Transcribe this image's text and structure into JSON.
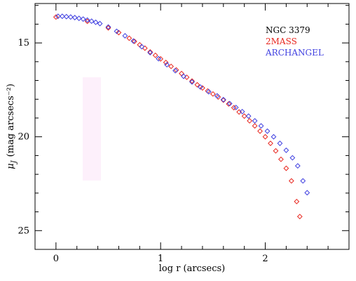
{
  "chart_data": {
    "type": "scatter",
    "title": "",
    "xlabel": "log r (arcsecs)",
    "ylabel": "μ_J (mag arcsecs⁻²)",
    "ylabel_main": "μ",
    "ylabel_sub": "J",
    "ylabel_rest": "(mag arcsecs⁻²)",
    "xlim": [
      -0.2,
      2.8
    ],
    "ylim": [
      26,
      12.9
    ],
    "y_inverted": true,
    "xticks": [
      0,
      1,
      2
    ],
    "yticks": [
      15,
      20,
      25
    ],
    "grid": false,
    "legend_position": "top-right",
    "legend": [
      {
        "text": "NGC 3379",
        "color": "#000000"
      },
      {
        "text": "2MASS",
        "color": "#e8261e"
      },
      {
        "text": "ARCHANGEL",
        "color": "#3f3fe0"
      }
    ],
    "series": [
      {
        "name": "2MASS",
        "color": "#e8261e",
        "marker": "diamond",
        "x": [
          0.0,
          0.3,
          0.5,
          0.6,
          0.7,
          0.75,
          0.8,
          0.85,
          0.9,
          0.95,
          1.0,
          1.05,
          1.1,
          1.15,
          1.2,
          1.25,
          1.3,
          1.35,
          1.4,
          1.45,
          1.5,
          1.55,
          1.6,
          1.65,
          1.7,
          1.75,
          1.8,
          1.85,
          1.9,
          1.95,
          2.0,
          2.05,
          2.1,
          2.15,
          2.2,
          2.25,
          2.3,
          2.33
        ],
        "y": [
          13.62,
          13.85,
          14.2,
          14.45,
          14.75,
          14.92,
          15.1,
          15.28,
          15.48,
          15.66,
          15.85,
          16.04,
          16.25,
          16.44,
          16.63,
          16.83,
          17.03,
          17.23,
          17.4,
          17.56,
          17.72,
          17.88,
          18.05,
          18.25,
          18.45,
          18.68,
          18.9,
          19.15,
          19.42,
          19.7,
          20.0,
          20.35,
          20.75,
          21.2,
          21.68,
          22.35,
          23.45,
          24.25
        ]
      },
      {
        "name": "ARCHANGEL",
        "color": "#3f3fe0",
        "marker": "diamond",
        "x": [
          0.02,
          0.06,
          0.1,
          0.14,
          0.18,
          0.22,
          0.26,
          0.3,
          0.34,
          0.38,
          0.42,
          0.5,
          0.58,
          0.66,
          0.74,
          0.82,
          0.9,
          0.98,
          1.06,
          1.14,
          1.22,
          1.3,
          1.38,
          1.46,
          1.54,
          1.6,
          1.66,
          1.72,
          1.78,
          1.84,
          1.9,
          1.96,
          2.02,
          2.08,
          2.14,
          2.2,
          2.26,
          2.31,
          2.36,
          2.4
        ],
        "y": [
          13.58,
          13.58,
          13.6,
          13.62,
          13.65,
          13.69,
          13.73,
          13.78,
          13.84,
          13.9,
          13.97,
          14.15,
          14.38,
          14.62,
          14.9,
          15.2,
          15.52,
          15.84,
          16.16,
          16.48,
          16.78,
          17.08,
          17.35,
          17.6,
          17.82,
          18.02,
          18.23,
          18.44,
          18.66,
          18.9,
          19.15,
          19.42,
          19.7,
          20.0,
          20.35,
          20.72,
          21.12,
          21.55,
          22.35,
          22.98
        ]
      }
    ]
  }
}
